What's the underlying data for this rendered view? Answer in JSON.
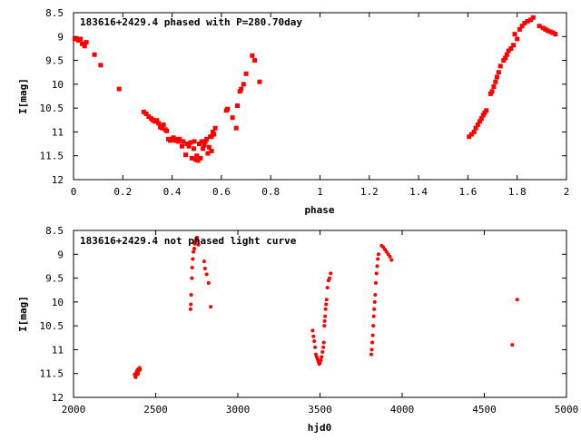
{
  "chart_data": [
    {
      "type": "scatter",
      "title": "183616+2429.4 phased with P=280.70day",
      "xlabel": "phase",
      "ylabel": "I[mag]",
      "xlim": [
        0,
        2
      ],
      "ylim": [
        12,
        8.5
      ],
      "y_inverted": true,
      "grid": false,
      "marker_color": "#ff0000",
      "marker": "filled-square",
      "xticks": [
        0,
        0.2,
        0.4,
        0.6,
        0.8,
        1,
        1.2,
        1.4,
        1.6,
        1.8,
        2
      ],
      "xtick_labels": [
        "0",
        "0.2",
        "0.4",
        "0.6",
        "0.8",
        "1",
        "1.2",
        "1.4",
        "1.6",
        "1.8",
        "2"
      ],
      "yticks": [
        8.5,
        9,
        9.5,
        10,
        10.5,
        11,
        11.5,
        12
      ],
      "ytick_labels": [
        "8.5",
        "9",
        "9.5",
        "10",
        "10.5",
        "11",
        "11.5",
        "12"
      ],
      "series": [
        {
          "x": [
            0.005,
            0.012,
            0.02,
            0.028,
            0.035,
            0.045,
            0.052,
            0.085,
            0.11,
            0.185,
            0.285,
            0.295,
            0.305,
            0.315,
            0.322,
            0.33,
            0.338,
            0.345,
            0.352,
            0.36,
            0.365,
            0.372,
            0.378,
            0.385,
            0.392,
            0.398,
            0.405,
            0.412,
            0.418,
            0.425,
            0.43,
            0.44,
            0.445,
            0.455,
            0.46,
            0.468,
            0.475,
            0.48,
            0.488,
            0.49,
            0.495,
            0.5,
            0.505,
            0.51,
            0.515,
            0.52,
            0.525,
            0.53,
            0.535,
            0.54,
            0.545,
            0.55,
            0.555,
            0.56,
            0.565,
            0.56,
            0.57,
            0.575,
            0.62,
            0.625,
            0.645,
            0.66,
            0.665,
            0.675,
            0.68,
            0.69,
            0.7,
            0.725,
            0.735,
            0.755,
            1.605,
            1.615,
            1.625,
            1.632,
            1.64,
            1.648,
            1.655,
            1.662,
            1.668,
            1.675,
            1.692,
            1.698,
            1.705,
            1.712,
            1.718,
            1.725,
            1.732,
            1.745,
            1.752,
            1.758,
            1.765,
            1.775,
            1.785,
            1.79,
            1.8,
            1.81,
            1.82,
            1.83,
            1.842,
            1.855,
            1.865,
            1.89,
            1.905,
            1.915,
            1.925,
            1.935,
            1.945,
            1.955
          ],
          "y": [
            9.05,
            9.05,
            9.08,
            9.05,
            9.15,
            9.2,
            9.12,
            9.38,
            9.6,
            10.1,
            10.58,
            10.62,
            10.68,
            10.72,
            10.75,
            10.78,
            10.76,
            10.82,
            10.9,
            10.92,
            10.85,
            10.95,
            10.98,
            11.15,
            11.18,
            11.15,
            11.12,
            11.18,
            11.15,
            11.2,
            11.15,
            11.3,
            11.2,
            11.48,
            11.25,
            11.3,
            11.22,
            11.55,
            11.35,
            11.2,
            11.58,
            11.5,
            11.6,
            11.25,
            11.55,
            11.2,
            11.35,
            11.28,
            11.2,
            11.15,
            11.45,
            11.32,
            11.1,
            11.4,
            11.0,
            11.1,
            11.05,
            10.92,
            10.55,
            10.52,
            10.7,
            10.92,
            10.45,
            10.15,
            10.1,
            10.0,
            9.78,
            9.4,
            9.5,
            9.95,
            11.1,
            11.05,
            11.0,
            10.92,
            10.85,
            10.78,
            10.72,
            10.65,
            10.6,
            10.55,
            10.2,
            10.15,
            10.05,
            9.95,
            9.85,
            9.75,
            9.62,
            9.5,
            9.45,
            9.38,
            9.3,
            9.25,
            9.18,
            8.95,
            9.05,
            8.85,
            8.78,
            8.72,
            8.68,
            8.65,
            8.6,
            8.78,
            8.82,
            8.85,
            8.88,
            8.9,
            8.92,
            8.95
          ]
        }
      ]
    },
    {
      "type": "scatter",
      "title": "183616+2429.4 not phased light curve",
      "xlabel": "hjd0",
      "ylabel": "I[mag]",
      "xlim": [
        2000,
        5000
      ],
      "ylim": [
        12,
        8.5
      ],
      "y_inverted": true,
      "grid": false,
      "marker_color": "#ff0000",
      "marker": "filled-circle",
      "xticks": [
        2000,
        2500,
        3000,
        3500,
        4000,
        4500,
        5000
      ],
      "xtick_labels": [
        "2000",
        "2500",
        "3000",
        "3500",
        "4000",
        "4500",
        "5000"
      ],
      "yticks": [
        8.5,
        9,
        9.5,
        10,
        10.5,
        11,
        11.5,
        12
      ],
      "ytick_labels": [
        "8.5",
        "9",
        "9.5",
        "10",
        "10.5",
        "11",
        "11.5",
        "12"
      ],
      "series": [
        {
          "x": [
            2372,
            2375,
            2378,
            2380,
            2383,
            2386,
            2388,
            2390,
            2393,
            2396,
            2399,
            2402,
            2405,
            2712,
            2714,
            2716,
            2720,
            2722,
            2726,
            2730,
            2735,
            2738,
            2742,
            2747,
            2752,
            2756,
            2760,
            2795,
            2800,
            2810,
            2822,
            2835,
            3455,
            3460,
            3465,
            3470,
            3475,
            3480,
            3485,
            3490,
            3495,
            3500,
            3505,
            3510,
            3515,
            3520,
            3523,
            3526,
            3528,
            3531,
            3534,
            3537,
            3540,
            3545,
            3552,
            3558,
            3565,
            3812,
            3815,
            3818,
            3821,
            3824,
            3827,
            3830,
            3833,
            3836,
            3840,
            3844,
            3848,
            3852,
            3856,
            3875,
            3885,
            3895,
            3905,
            3915,
            3925,
            3935,
            4670,
            4700
          ],
          "y": [
            11.52,
            11.55,
            11.58,
            11.5,
            11.48,
            11.45,
            11.52,
            11.42,
            11.5,
            11.44,
            11.4,
            11.38,
            11.42,
            10.15,
            10.05,
            9.85,
            9.5,
            9.28,
            9.1,
            8.95,
            8.88,
            8.78,
            8.72,
            8.68,
            8.65,
            8.72,
            8.8,
            9.15,
            9.3,
            9.42,
            9.6,
            10.1,
            10.6,
            10.72,
            10.82,
            10.95,
            11.1,
            11.15,
            11.2,
            11.25,
            11.3,
            11.28,
            11.22,
            11.15,
            11.05,
            10.95,
            10.85,
            10.5,
            10.4,
            10.3,
            10.15,
            10.05,
            9.95,
            9.7,
            9.55,
            9.5,
            9.4,
            11.1,
            11.0,
            10.85,
            10.7,
            10.5,
            10.3,
            10.15,
            10.0,
            9.85,
            9.6,
            9.4,
            9.25,
            9.1,
            9.0,
            8.82,
            8.85,
            8.9,
            8.95,
            9.0,
            9.05,
            9.12,
            10.9,
            9.95
          ]
        }
      ]
    }
  ]
}
